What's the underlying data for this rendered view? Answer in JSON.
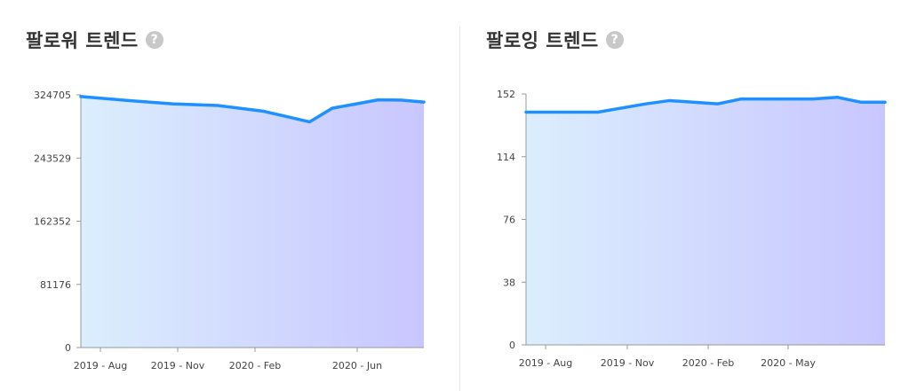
{
  "panels": [
    {
      "title": "팔로워 트렌드",
      "help_icon": "question-circle-icon",
      "help_glyph": "?"
    },
    {
      "title": "팔로잉 트렌드",
      "help_icon": "question-circle-icon",
      "help_glyph": "?"
    }
  ],
  "colors": {
    "line": "#1E90FF",
    "fill_start": "#DBEEFD",
    "fill_end": "#C8C6FF",
    "axis": "#999999"
  },
  "chart_data": [
    {
      "type": "area",
      "title": "팔로워 트렌드",
      "x_ticks": [
        "2019 - Aug",
        "2019 - Nov",
        "2020 - Feb",
        "2020 - Jun"
      ],
      "y_ticks": [
        "0",
        "81176",
        "162352",
        "243529",
        "324705"
      ],
      "ylim": [
        0,
        324705
      ],
      "x": [
        "2019-07",
        "2019-09",
        "2019-11",
        "2020-01",
        "2020-03",
        "2020-05",
        "2020-06",
        "2020-07",
        "2020-08",
        "2020-09",
        "2020-10"
      ],
      "values": [
        322600,
        317600,
        313200,
        311000,
        303600,
        290000,
        307600,
        312900,
        318300,
        318000,
        315500
      ]
    },
    {
      "type": "area",
      "title": "팔로잉 트렌드",
      "x_ticks": [
        "2019 - Aug",
        "2019 - Nov",
        "2020 - Feb",
        "2020 - May"
      ],
      "y_ticks": [
        "0",
        "38",
        "76",
        "114",
        "152"
      ],
      "ylim": [
        0,
        152
      ],
      "x": [
        "2019-07",
        "2019-10",
        "2019-12",
        "2020-01",
        "2020-03",
        "2020-04",
        "2020-05",
        "2020-07",
        "2020-08",
        "2020-09",
        "2020-10"
      ],
      "values": [
        141,
        141,
        146,
        148,
        146,
        149,
        149,
        149,
        150,
        147,
        147
      ]
    }
  ]
}
